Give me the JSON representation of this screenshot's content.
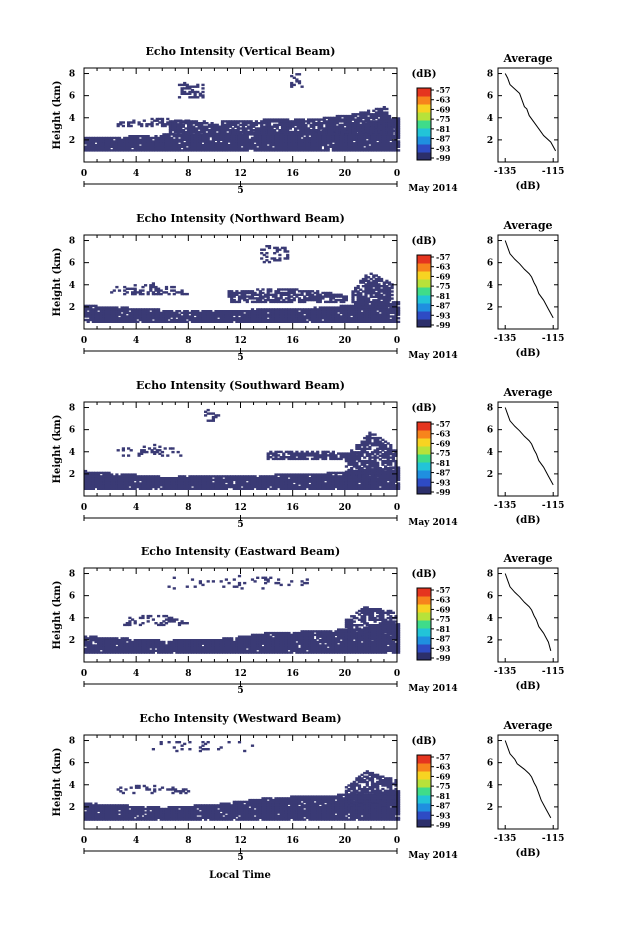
{
  "colorbar": {
    "unit": "(dB)",
    "ticks": [
      "-57",
      "-63",
      "-69",
      "-75",
      "-81",
      "-87",
      "-93",
      "-99"
    ],
    "colors": [
      "#2c2f6b",
      "#2e4bc4",
      "#1f8fe0",
      "#22c4d8",
      "#3fdc8a",
      "#b7e23a",
      "#f7d322",
      "#f7841c",
      "#e5351f"
    ]
  },
  "echo_color": "#3a3a75",
  "date_label": "May 2014",
  "xlabel": "Local Time",
  "ylabel": "Height (km)",
  "x_ticks": [
    "0",
    "4",
    "8",
    "12",
    "16",
    "20",
    "0"
  ],
  "x_sub": "5",
  "y_ticks": [
    "2",
    "4",
    "6",
    "8"
  ],
  "avg_title": "Average",
  "avg_xlabel": "(dB)",
  "avg_x_ticks": [
    "-135",
    "-115"
  ],
  "avg_y_ticks": [
    "2",
    "4",
    "6",
    "8"
  ],
  "chart_data": [
    {
      "type": "heatmap",
      "title": "Echo Intensity (Vertical Beam)",
      "xlim": [
        0,
        24
      ],
      "ylim": [
        0,
        8.5
      ],
      "echo_layers": [
        {
          "x0": 0,
          "x1": 24,
          "base": 1.0,
          "tops": [
            [
              0,
              2.2
            ],
            [
              4,
              2.3
            ],
            [
              8,
              2.6
            ],
            [
              12,
              2.6
            ],
            [
              16,
              2.7
            ],
            [
              20,
              3.0
            ],
            [
              22,
              3.6
            ],
            [
              24,
              4.0
            ]
          ],
          "density": 0.95
        },
        {
          "x0": 2.5,
          "x1": 8,
          "base": 3.2,
          "tops": [
            [
              2.5,
              3.6
            ],
            [
              5,
              3.9
            ],
            [
              8,
              3.8
            ]
          ],
          "density": 0.55
        },
        {
          "x0": 6.5,
          "x1": 23.5,
          "base": 2.5,
          "tops": [
            [
              6.5,
              3.7
            ],
            [
              10,
              3.6
            ],
            [
              14,
              3.8
            ],
            [
              18,
              3.9
            ],
            [
              21,
              4.4
            ],
            [
              23,
              5.0
            ],
            [
              23.5,
              3.8
            ]
          ],
          "density": 0.85
        },
        {
          "x0": 7.2,
          "x1": 9.0,
          "base": 5.8,
          "tops": [
            [
              7.2,
              7.2
            ],
            [
              9,
              7.0
            ]
          ],
          "density": 0.55
        },
        {
          "x0": 15.8,
          "x1": 16.6,
          "base": 6.6,
          "tops": [
            [
              15.8,
              8.0
            ],
            [
              16.6,
              8.0
            ]
          ],
          "density": 0.35
        }
      ],
      "average": {
        "x": [
          -114,
          -116,
          -119,
          -121,
          -123,
          -125,
          -126,
          -127,
          -128,
          -129,
          -131,
          -133,
          -134,
          -135
        ],
        "y": [
          1,
          1.8,
          2.4,
          3.0,
          3.6,
          4.2,
          4.8,
          5.0,
          5.6,
          6.2,
          6.6,
          7.0,
          7.6,
          8.0
        ]
      }
    },
    {
      "type": "heatmap",
      "title": "Echo Intensity (Northward Beam)",
      "xlim": [
        0,
        24
      ],
      "ylim": [
        0,
        8.5
      ],
      "echo_layers": [
        {
          "x0": 0,
          "x1": 24,
          "base": 0.6,
          "tops": [
            [
              0,
              2.1
            ],
            [
              6,
              1.7
            ],
            [
              12,
              1.7
            ],
            [
              18,
              1.9
            ],
            [
              21,
              2.2
            ],
            [
              24,
              2.5
            ]
          ],
          "density": 0.95
        },
        {
          "x0": 11,
          "x1": 20,
          "base": 2.4,
          "tops": [
            [
              11,
              3.4
            ],
            [
              14,
              3.6
            ],
            [
              17,
              3.5
            ],
            [
              20,
              3.0
            ]
          ],
          "density": 0.7
        },
        {
          "x0": 2,
          "x1": 8,
          "base": 3.1,
          "tops": [
            [
              2,
              3.7
            ],
            [
              5,
              4.1
            ],
            [
              8,
              3.6
            ]
          ],
          "density": 0.35
        },
        {
          "x0": 20.5,
          "x1": 23.5,
          "base": 1.9,
          "tops": [
            [
              20.5,
              3.5
            ],
            [
              21.8,
              5.3
            ],
            [
              23.5,
              4.0
            ]
          ],
          "density": 0.75
        },
        {
          "x0": 13.5,
          "x1": 15.5,
          "base": 6.0,
          "tops": [
            [
              13.5,
              7.6
            ],
            [
              15.5,
              7.4
            ]
          ],
          "density": 0.3
        }
      ],
      "average": {
        "x": [
          -115,
          -117,
          -119,
          -121,
          -122,
          -123,
          -124,
          -125,
          -127,
          -129,
          -131,
          -133,
          -134,
          -135
        ],
        "y": [
          1,
          1.8,
          2.6,
          3.2,
          3.8,
          4.2,
          4.7,
          5.0,
          5.4,
          5.9,
          6.3,
          6.8,
          7.4,
          8.0
        ]
      }
    },
    {
      "type": "heatmap",
      "title": "Echo Intensity (Southward Beam)",
      "xlim": [
        0,
        24
      ],
      "ylim": [
        0,
        8.5
      ],
      "echo_layers": [
        {
          "x0": 0,
          "x1": 24,
          "base": 0.6,
          "tops": [
            [
              0,
              2.2
            ],
            [
              6,
              1.7
            ],
            [
              12,
              1.8
            ],
            [
              18,
              2.0
            ],
            [
              21,
              2.3
            ],
            [
              24,
              2.6
            ]
          ],
          "density": 0.95
        },
        {
          "x0": 14,
          "x1": 21,
          "base": 3.3,
          "tops": [
            [
              14,
              4.0
            ],
            [
              17,
              4.1
            ],
            [
              21,
              3.8
            ]
          ],
          "density": 0.7
        },
        {
          "x0": 2.5,
          "x1": 7.5,
          "base": 3.6,
          "tops": [
            [
              2.5,
              4.3
            ],
            [
              5,
              4.7
            ],
            [
              7.5,
              4.2
            ]
          ],
          "density": 0.3
        },
        {
          "x0": 20,
          "x1": 23.8,
          "base": 1.5,
          "tops": [
            [
              20,
              3.6
            ],
            [
              21.8,
              5.8
            ],
            [
              23.8,
              4.3
            ]
          ],
          "density": 0.75
        },
        {
          "x0": 9.2,
          "x1": 10.2,
          "base": 6.6,
          "tops": [
            [
              9.2,
              8.0
            ],
            [
              10.2,
              7.8
            ]
          ],
          "density": 0.35
        }
      ],
      "average": {
        "x": [
          -115,
          -117,
          -119,
          -121,
          -122,
          -123,
          -124,
          -125,
          -127,
          -129,
          -131,
          -133,
          -134,
          -135
        ],
        "y": [
          1,
          1.8,
          2.6,
          3.2,
          3.8,
          4.2,
          4.7,
          5.0,
          5.4,
          5.9,
          6.3,
          6.8,
          7.4,
          8.0
        ]
      }
    },
    {
      "type": "heatmap",
      "title": "Echo Intensity (Eastward Beam)",
      "xlim": [
        0,
        24
      ],
      "ylim": [
        0,
        8.5
      ],
      "echo_layers": [
        {
          "x0": 0,
          "x1": 24,
          "base": 0.8,
          "tops": [
            [
              0,
              2.3
            ],
            [
              6,
              1.9
            ],
            [
              10,
              2.0
            ],
            [
              14,
              2.6
            ],
            [
              18,
              2.8
            ],
            [
              21,
              3.0
            ],
            [
              24,
              3.5
            ]
          ],
          "density": 0.95
        },
        {
          "x0": 3,
          "x1": 8,
          "base": 3.3,
          "tops": [
            [
              3,
              3.9
            ],
            [
              5.5,
              4.3
            ],
            [
              8,
              3.8
            ]
          ],
          "density": 0.35
        },
        {
          "x0": 20,
          "x1": 23.8,
          "base": 2.0,
          "tops": [
            [
              20,
              3.8
            ],
            [
              21.5,
              5.0
            ],
            [
              23.8,
              4.5
            ]
          ],
          "density": 0.7
        },
        {
          "x0": 6,
          "x1": 17,
          "base": 6.6,
          "tops": [
            [
              6,
              7.6
            ],
            [
              12,
              7.8
            ],
            [
              17,
              7.4
            ]
          ],
          "density": 0.12
        }
      ],
      "average": {
        "x": [
          -116,
          -117,
          -119,
          -121,
          -122,
          -123,
          -124,
          -125,
          -127,
          -129,
          -131,
          -133,
          -134,
          -135
        ],
        "y": [
          1,
          1.8,
          2.6,
          3.2,
          3.8,
          4.2,
          4.7,
          5.0,
          5.4,
          5.9,
          6.3,
          6.8,
          7.4,
          8.0
        ]
      }
    },
    {
      "type": "heatmap",
      "title": "Echo Intensity (Westward Beam)",
      "xlim": [
        0,
        24
      ],
      "ylim": [
        0,
        8.5
      ],
      "echo_layers": [
        {
          "x0": 0,
          "x1": 24,
          "base": 0.8,
          "tops": [
            [
              0,
              2.3
            ],
            [
              6,
              1.9
            ],
            [
              10,
              2.2
            ],
            [
              14,
              2.8
            ],
            [
              18,
              3.0
            ],
            [
              21,
              3.1
            ],
            [
              24,
              3.4
            ]
          ],
          "density": 0.95
        },
        {
          "x0": 2.5,
          "x1": 8,
          "base": 3.2,
          "tops": [
            [
              2.5,
              3.8
            ],
            [
              5,
              4.0
            ],
            [
              8,
              3.6
            ]
          ],
          "density": 0.3
        },
        {
          "x0": 20,
          "x1": 23.8,
          "base": 1.8,
          "tops": [
            [
              20,
              3.8
            ],
            [
              21.5,
              5.2
            ],
            [
              23.8,
              4.4
            ]
          ],
          "density": 0.7
        },
        {
          "x0": 5,
          "x1": 13,
          "base": 7.0,
          "tops": [
            [
              5,
              8.0
            ],
            [
              13,
              7.8
            ]
          ],
          "density": 0.15
        }
      ],
      "average": {
        "x": [
          -116,
          -118,
          -120,
          -121,
          -122,
          -123,
          -124,
          -125,
          -127,
          -130,
          -131,
          -133,
          -134,
          -135
        ],
        "y": [
          1,
          1.8,
          2.6,
          3.2,
          3.8,
          4.2,
          4.7,
          5.0,
          5.4,
          5.9,
          6.3,
          6.8,
          7.4,
          8.0
        ]
      }
    }
  ]
}
